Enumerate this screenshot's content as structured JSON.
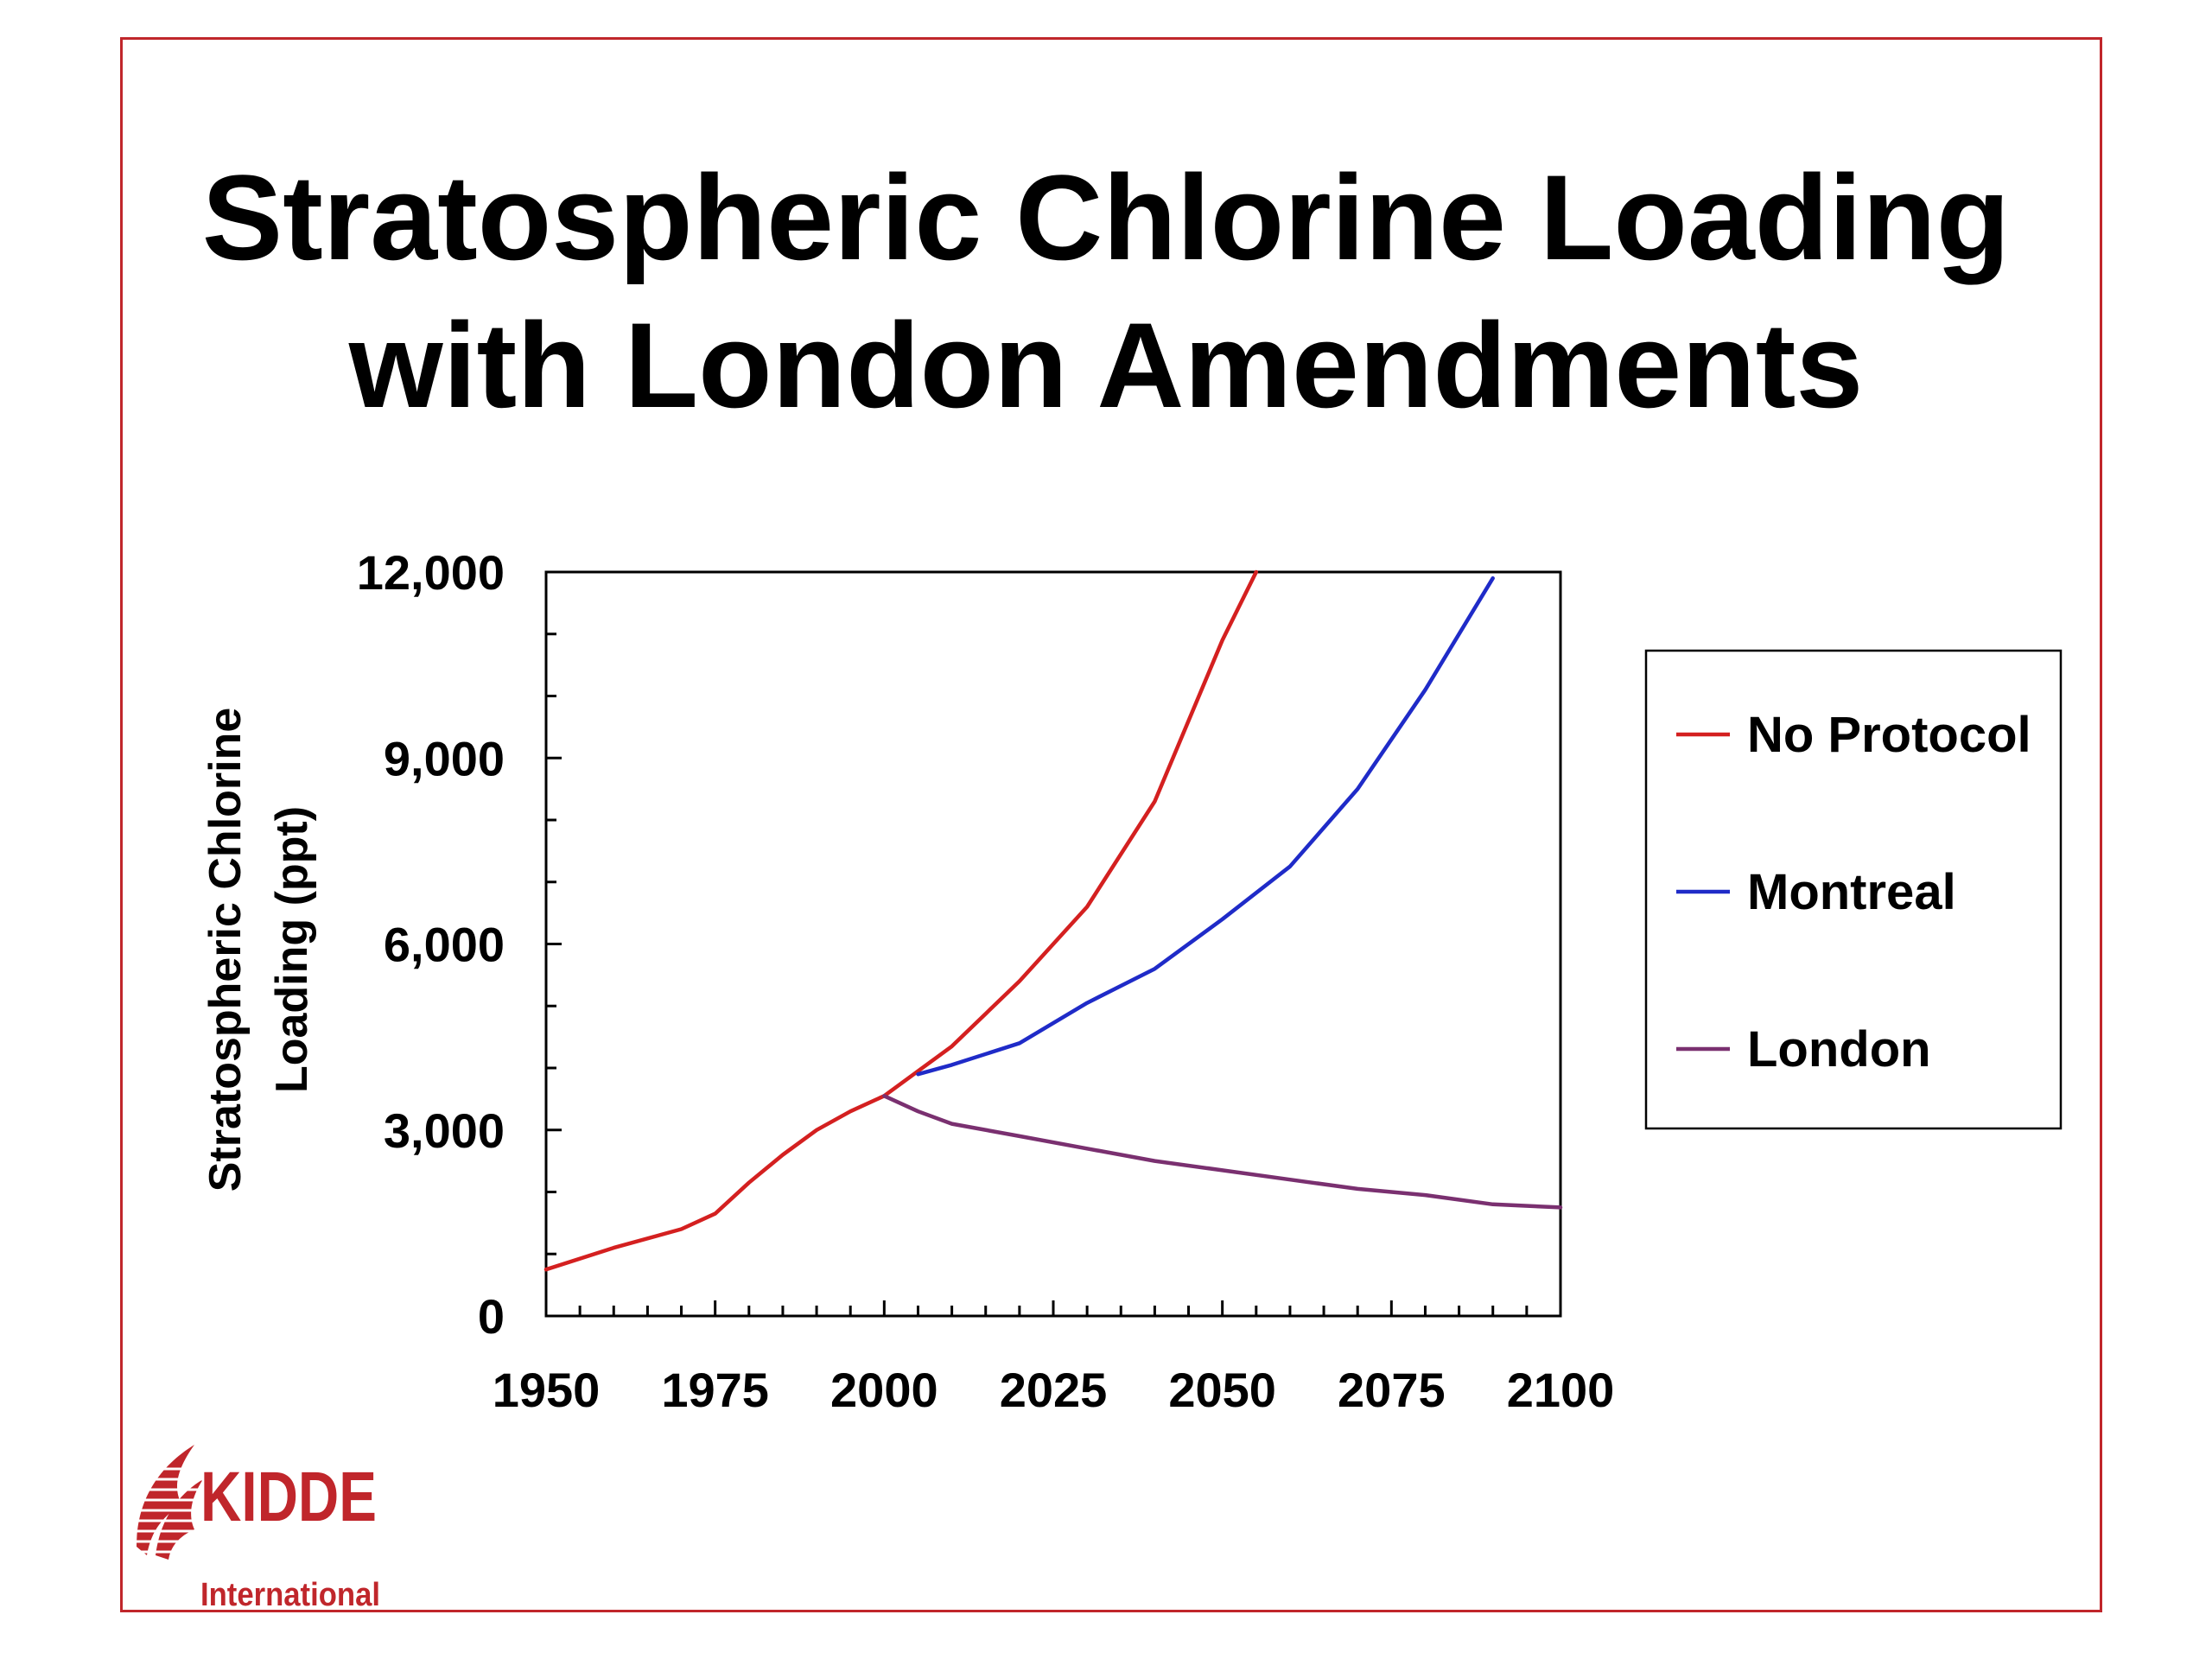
{
  "slide": {
    "title_line1": "Stratospheric Chlorine Loading",
    "title_line2": "with London Amendments",
    "logo": {
      "name": "KIDDE",
      "sub": "International"
    },
    "colors": {
      "frame": "#c0262b",
      "logo": "#c0262b"
    }
  },
  "chart_data": {
    "type": "line",
    "title": "Stratospheric Chlorine Loading with London Amendments",
    "xlabel": "",
    "ylabel": [
      "Stratospheric Chlorine",
      "Loading (ppt)"
    ],
    "xlim": [
      1950,
      2100
    ],
    "ylim": [
      0,
      12000
    ],
    "xticks": [
      1950,
      1975,
      2000,
      2025,
      2050,
      2075,
      2100
    ],
    "xtick_labels": [
      "1950",
      "1975",
      "2000",
      "2025",
      "2050",
      "2075",
      "2100"
    ],
    "yticks": [
      0,
      3000,
      6000,
      9000,
      12000
    ],
    "ytick_labels": [
      "0",
      "3,000",
      "6,000",
      "9,000",
      "12,000"
    ],
    "grid": false,
    "legend_position": "right",
    "series": [
      {
        "name": "No Protocol",
        "color": "#d42020",
        "x": [
          1950,
          1960,
          1970,
          1975,
          1980,
          1985,
          1990,
          1995,
          2000,
          2005,
          2010,
          2020,
          2030,
          2040,
          2045,
          2050,
          2055
        ],
        "y": [
          750,
          1100,
          1400,
          1650,
          2150,
          2600,
          3000,
          3300,
          3550,
          3950,
          4350,
          5400,
          6600,
          8300,
          9600,
          10900,
          12000
        ]
      },
      {
        "name": "Montreal",
        "color": "#1f2bc8",
        "x": [
          2005,
          2010,
          2020,
          2030,
          2040,
          2050,
          2060,
          2070,
          2080,
          2090
        ],
        "y": [
          3900,
          4050,
          4400,
          5050,
          5600,
          6400,
          7250,
          8500,
          10100,
          11900
        ]
      },
      {
        "name": "London",
        "color": "#7a3070",
        "x": [
          2000,
          2005,
          2010,
          2020,
          2030,
          2040,
          2050,
          2060,
          2070,
          2080,
          2090,
          2100
        ],
        "y": [
          3550,
          3300,
          3100,
          2900,
          2700,
          2500,
          2350,
          2200,
          2050,
          1950,
          1800,
          1750
        ]
      }
    ]
  }
}
